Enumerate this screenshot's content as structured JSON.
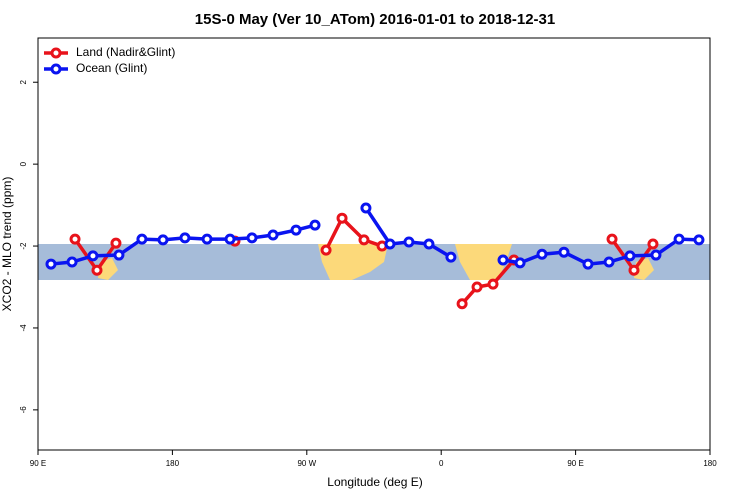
{
  "chart_data": {
    "type": "line",
    "title": "15S-0 May (Ver 10_ATom)   2016-01-01 to 2018-12-31",
    "xlabel": "Longitude (deg E)",
    "ylabel": "XCO2 - MLO trend (ppm)",
    "xlim": [
      90,
      540
    ],
    "ylim": [
      -6.98,
      3.08
    ],
    "xticks": [
      {
        "value": 90,
        "label": "90 E"
      },
      180,
      {
        "value": 270,
        "label": "90 W"
      },
      {
        "value": 360,
        "label": "0"
      },
      {
        "value": 450,
        "label": "90 E"
      },
      {
        "value": 540,
        "label": "180"
      }
    ],
    "yticks": [
      -6,
      -4,
      -2,
      0,
      2
    ],
    "legend": "top-left",
    "series": [
      {
        "name": "Land (Nadir&Glint)",
        "color": "#e8131b",
        "x": [
          114.8,
          129.5,
          142.2,
          null,
          221.9,
          null,
          282.9,
          293.6,
          308.3,
          320.4,
          null,
          374,
          384,
          394.7,
          408.7,
          null,
          474.4,
          489.1,
          501.8
        ],
        "values": [
          -1.83,
          -2.59,
          -1.93,
          null,
          -1.88,
          null,
          -2.1,
          -1.32,
          -1.85,
          -2.0,
          null,
          -3.41,
          -3.0,
          -2.93,
          -2.34,
          null,
          -1.83,
          -2.59,
          -1.95
        ]
      },
      {
        "name": "Ocean (Glint)",
        "color": "#0a14f0",
        "x": [
          98.7,
          112.8,
          126.8,
          144.2,
          159.6,
          173.7,
          188.4,
          203.2,
          218.6,
          233.3,
          247.4,
          262.8,
          275.5,
          null,
          309.6,
          325.7,
          338.4,
          351.8,
          366.5,
          null,
          401.4,
          412.8,
          427.5,
          442.2,
          458.3,
          472.4,
          486.4,
          503.8,
          519.3,
          532.6
        ],
        "values": [
          -2.44,
          -2.39,
          -2.24,
          -2.22,
          -1.83,
          -1.85,
          -1.8,
          -1.83,
          -1.83,
          -1.8,
          -1.73,
          -1.61,
          -1.49,
          null,
          -1.07,
          -1.95,
          -1.9,
          -1.95,
          -2.27,
          null,
          -2.34,
          -2.41,
          -2.2,
          -2.15,
          -2.44,
          -2.39,
          -2.24,
          -2.22,
          -1.83,
          -1.85
        ]
      }
    ]
  }
}
